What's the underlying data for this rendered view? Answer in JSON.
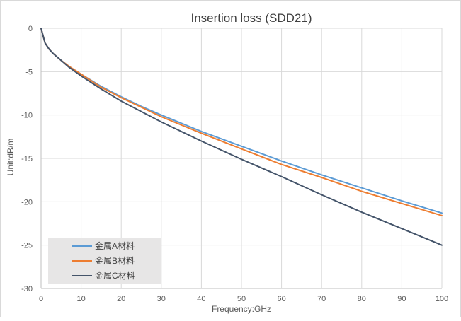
{
  "chart_data": {
    "type": "line",
    "title": "Insertion loss (SDD21)",
    "xlabel": "Frequency:GHz",
    "ylabel": "Unit:dB/m",
    "xlim": [
      0,
      100
    ],
    "ylim": [
      -30,
      0
    ],
    "x_ticks": [
      0,
      10,
      20,
      30,
      40,
      50,
      60,
      70,
      80,
      90,
      100
    ],
    "y_ticks": [
      0,
      -5,
      -10,
      -15,
      -20,
      -25,
      -30
    ],
    "grid": true,
    "legend_position": "bottom-left",
    "series": [
      {
        "name": "金属A材料",
        "color": "#5b9bd5",
        "x": [
          0,
          1,
          2,
          3,
          5,
          7,
          10,
          15,
          20,
          25,
          30,
          40,
          50,
          60,
          70,
          80,
          90,
          100
        ],
        "y": [
          0,
          -1.7,
          -2.4,
          -2.9,
          -3.7,
          -4.4,
          -5.3,
          -6.7,
          -7.9,
          -9.0,
          -10.0,
          -11.9,
          -13.6,
          -15.3,
          -16.9,
          -18.4,
          -19.9,
          -21.3
        ]
      },
      {
        "name": "金属B材料",
        "color": "#ed7d31",
        "x": [
          0,
          1,
          2,
          3,
          5,
          7,
          10,
          15,
          20,
          25,
          30,
          40,
          50,
          60,
          70,
          80,
          90,
          100
        ],
        "y": [
          0,
          -1.7,
          -2.4,
          -2.9,
          -3.7,
          -4.4,
          -5.3,
          -6.8,
          -8.0,
          -9.1,
          -10.2,
          -12.1,
          -13.9,
          -15.7,
          -17.2,
          -18.8,
          -20.2,
          -21.6
        ]
      },
      {
        "name": "金属C材料",
        "color": "#44546a",
        "x": [
          0,
          1,
          2,
          3,
          5,
          7,
          10,
          15,
          20,
          25,
          30,
          40,
          50,
          60,
          70,
          80,
          90,
          100
        ],
        "y": [
          0,
          -1.7,
          -2.4,
          -2.9,
          -3.7,
          -4.5,
          -5.5,
          -7.0,
          -8.4,
          -9.6,
          -10.8,
          -13.0,
          -15.1,
          -17.1,
          -19.2,
          -21.2,
          -23.1,
          -25.0
        ]
      }
    ]
  }
}
